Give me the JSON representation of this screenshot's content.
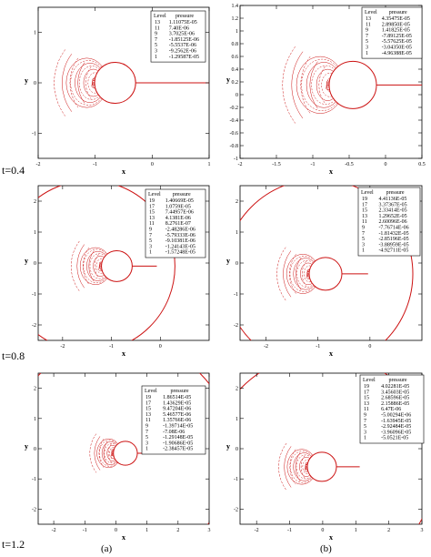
{
  "time_labels": [
    "t=0.4",
    "t=0.8",
    "t=1.2"
  ],
  "column_labels": [
    "(a)",
    "(b)"
  ],
  "colors": {
    "contour": "#cc1111",
    "frame": "#000000"
  },
  "legend_header": {
    "level": "Level",
    "pressure": "pressure"
  },
  "chart_data": [
    {
      "type": "contour",
      "id": "a1",
      "xlabel": "x",
      "ylabel": "y",
      "xlim": [
        -2,
        1
      ],
      "ylim": [
        -1.5,
        1.5
      ],
      "xticks": [
        "-2",
        "-1",
        "0",
        "1"
      ],
      "yticks": [
        "-1",
        "0",
        "1"
      ],
      "legend": [
        {
          "level": "13",
          "value": "1.11075E-05"
        },
        {
          "level": "11",
          "value": "7.40E-06"
        },
        {
          "level": "9",
          "value": "3.7025E-06"
        },
        {
          "level": "7",
          "value": "-1.85125E-06"
        },
        {
          "level": "5",
          "value": "-5.5537E-06"
        },
        {
          "level": "3",
          "value": "-9.2562E-06"
        },
        {
          "level": "1",
          "value": "-1.29587E-05"
        }
      ]
    },
    {
      "type": "contour",
      "id": "b1",
      "xlabel": "x",
      "ylabel": "y",
      "xlim": [
        -2,
        0.5
      ],
      "ylim": [
        -1,
        1.4
      ],
      "xticks": [
        "-2",
        "-1.5",
        "-1",
        "-0.5",
        "0",
        "0.5"
      ],
      "yticks": [
        "-1",
        "-0.8",
        "-0.6",
        "-0.4",
        "-0.2",
        "0",
        "0.2",
        "0.4",
        "0.6",
        "0.8",
        "1",
        "1.2",
        "1.4"
      ],
      "legend": [
        {
          "level": "13",
          "value": "4.35475E-05"
        },
        {
          "level": "11",
          "value": "2.89850E-05"
        },
        {
          "level": "9",
          "value": "1.41825E-05"
        },
        {
          "level": "7",
          "value": "-7.89125E-05"
        },
        {
          "level": "5",
          "value": "-5.57625E-05"
        },
        {
          "level": "3",
          "value": "-3.04350E-05"
        },
        {
          "level": "1",
          "value": "-4.96388E-05"
        }
      ]
    },
    {
      "type": "contour",
      "id": "a2",
      "xlabel": "x",
      "ylabel": "y",
      "xlim": [
        -2.5,
        1
      ],
      "ylim": [
        -2.5,
        2.5
      ],
      "xticks": [
        "-2",
        "-1",
        "0"
      ],
      "yticks": [
        "-2",
        "-1",
        "0",
        "1",
        "2"
      ],
      "legend": [
        {
          "level": "19",
          "value": "1.40669E-05"
        },
        {
          "level": "17",
          "value": "1.0759E-05"
        },
        {
          "level": "15",
          "value": "7.44957E-06"
        },
        {
          "level": "13",
          "value": "4.1381E-06"
        },
        {
          "level": "11",
          "value": "8.2761E-07"
        },
        {
          "level": "9",
          "value": "-2.48286E-06"
        },
        {
          "level": "7",
          "value": "-5.79333E-06"
        },
        {
          "level": "5",
          "value": "-9.10381E-06"
        },
        {
          "level": "3",
          "value": "-1.24143E-05"
        },
        {
          "level": "1",
          "value": "-1.57248E-05"
        }
      ]
    },
    {
      "type": "contour",
      "id": "b2",
      "xlabel": "x",
      "ylabel": "y",
      "xlim": [
        -2.5,
        1
      ],
      "ylim": [
        -2.5,
        2.5
      ],
      "xticks": [
        "-2",
        "-1",
        "0"
      ],
      "yticks": [
        "-2",
        "-1",
        "0",
        "1",
        "2"
      ],
      "legend": [
        {
          "level": "19",
          "value": "4.41136E-05"
        },
        {
          "level": "17",
          "value": "3.37367E-05"
        },
        {
          "level": "15",
          "value": "2.33414E-05"
        },
        {
          "level": "13",
          "value": "1.29652E-05"
        },
        {
          "level": "11",
          "value": "2.60096E-06"
        },
        {
          "level": "9",
          "value": "-7.76714E-06"
        },
        {
          "level": "7",
          "value": "-1.81432E-05"
        },
        {
          "level": "5",
          "value": "-2.85196E-05"
        },
        {
          "level": "3",
          "value": "-3.88959E-05"
        },
        {
          "level": "1",
          "value": "-4.92711E-05"
        }
      ]
    },
    {
      "type": "contour",
      "id": "a3",
      "xlabel": "x",
      "ylabel": "y",
      "xlim": [
        -2.5,
        3
      ],
      "ylim": [
        -2.5,
        2.5
      ],
      "xticks": [
        "-2",
        "-1",
        "0",
        "1",
        "2",
        "3"
      ],
      "yticks": [
        "-2",
        "-1",
        "0",
        "1",
        "2"
      ],
      "legend": [
        {
          "level": "19",
          "value": "1.86514E-05"
        },
        {
          "level": "17",
          "value": "1.43629E-05"
        },
        {
          "level": "15",
          "value": "9.47204E-06"
        },
        {
          "level": "13",
          "value": "5.46577E-06"
        },
        {
          "level": "11",
          "value": "1.35766E-06"
        },
        {
          "level": "9",
          "value": "-1.39714E-05"
        },
        {
          "level": "7",
          "value": "-7.08E-06"
        },
        {
          "level": "5",
          "value": "-1.29148E-05"
        },
        {
          "level": "3",
          "value": "-1.90686E-05"
        },
        {
          "level": "1",
          "value": "-2.38457E-05"
        }
      ]
    },
    {
      "type": "contour",
      "id": "b3",
      "xlabel": "x",
      "ylabel": "y",
      "xlim": [
        -2.5,
        3
      ],
      "ylim": [
        -2.5,
        2.5
      ],
      "xticks": [
        "-2",
        "-1",
        "0",
        "1",
        "2",
        "3"
      ],
      "yticks": [
        "-2",
        "-1",
        "0",
        "1",
        "2"
      ],
      "legend": [
        {
          "level": "19",
          "value": "4.02281E-05"
        },
        {
          "level": "17",
          "value": "3.45603E-05"
        },
        {
          "level": "15",
          "value": "2.68596E-05"
        },
        {
          "level": "13",
          "value": "2.15886E-05"
        },
        {
          "level": "11",
          "value": "6.47E-06"
        },
        {
          "level": "9",
          "value": "-5.00294E-06"
        },
        {
          "level": "7",
          "value": "-1.63945E-05"
        },
        {
          "level": "5",
          "value": "-2.92484E-05"
        },
        {
          "level": "3",
          "value": "-3.96096E-05"
        },
        {
          "level": "1",
          "value": "-5.0521E-05"
        }
      ]
    }
  ]
}
